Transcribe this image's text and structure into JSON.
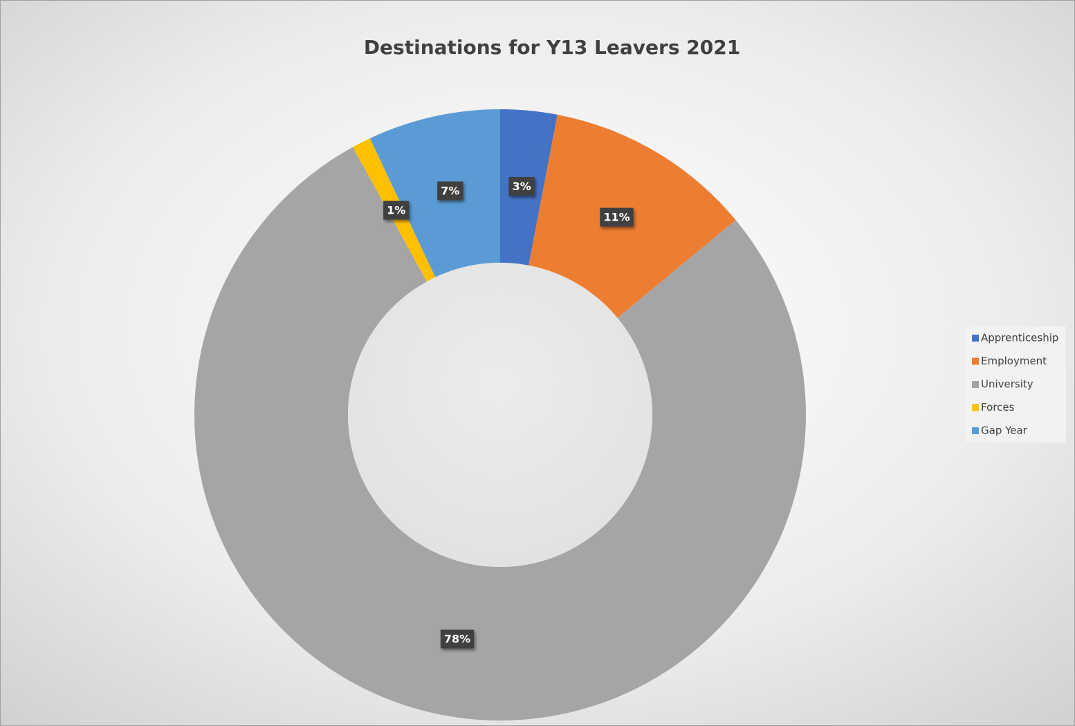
{
  "chart_data": {
    "type": "donut",
    "title": "Destinations for Y13 Leavers 2021",
    "categories": [
      "Apprenticeship",
      "Employment",
      "University",
      "Forces",
      "Gap Year"
    ],
    "values": [
      3,
      11,
      78,
      1,
      7
    ],
    "value_labels": [
      "3%",
      "11%",
      "78%",
      "1%",
      "7%"
    ],
    "colors": [
      "#4472c4",
      "#ed7d31",
      "#a5a5a5",
      "#ffc000",
      "#5b9bd5"
    ],
    "legend": "right"
  }
}
